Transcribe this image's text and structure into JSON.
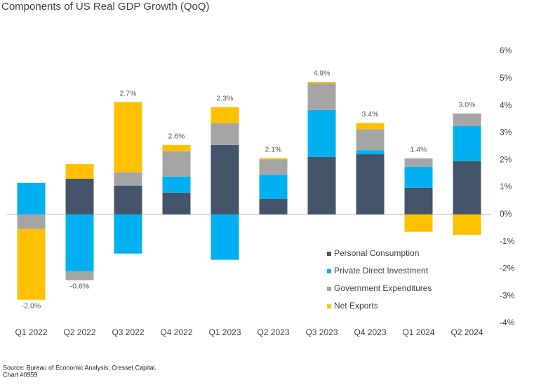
{
  "chart_data": {
    "type": "stacked_bar",
    "title": "Components of US Real GDP Growth (QoQ)",
    "categories": [
      "Q1 2022",
      "Q2 2022",
      "Q3 2022",
      "Q4 2022",
      "Q1 2023",
      "Q2 2023",
      "Q3 2023",
      "Q4 2023",
      "Q1 2024",
      "Q2 2024"
    ],
    "series": [
      {
        "name": "Personal Consumption",
        "color": "#44546a",
        "values": [
          0,
          1.31,
          1.06,
          0.8,
          2.55,
          0.57,
          2.11,
          2.21,
          0.98,
          1.96
        ]
      },
      {
        "name": "Private Direct Investment",
        "color": "#00b0f0",
        "values": [
          1.16,
          -2.09,
          -1.44,
          0.59,
          -1.67,
          0.88,
          1.73,
          0.15,
          0.77,
          1.29
        ]
      },
      {
        "name": "Government Expenditures",
        "color": "#a5a5a5",
        "values": [
          -0.54,
          -0.33,
          0.49,
          0.93,
          0.8,
          0.57,
          0.98,
          0.77,
          0.31,
          0.46
        ]
      },
      {
        "name": "Net Exports",
        "color": "#ffc000",
        "values": [
          -2.6,
          0.54,
          2.58,
          0.23,
          0.59,
          0.05,
          0.05,
          0.23,
          -0.64,
          -0.75
        ]
      }
    ],
    "totals": {
      "values": [
        -2.0,
        -0.6,
        2.7,
        2.6,
        2.3,
        2.1,
        4.9,
        3.4,
        1.4,
        3.0
      ],
      "value_labels": [
        "-2.0%",
        "-0.6%",
        "2.7%",
        "2.6%",
        "2.3%",
        "2.1%",
        "4.9%",
        "3.4%",
        "1.4%",
        "3.0%"
      ]
    },
    "ylim": [
      -4,
      6
    ],
    "yticks": [
      {
        "value": -4,
        "label": "-4%"
      },
      {
        "value": -3,
        "label": "-3%"
      },
      {
        "value": -2,
        "label": "-2%"
      },
      {
        "value": -1,
        "label": "-1%"
      },
      {
        "value": 0,
        "label": "0%"
      },
      {
        "value": 1,
        "label": "1%"
      },
      {
        "value": 2,
        "label": "2%"
      },
      {
        "value": 3,
        "label": "3%"
      },
      {
        "value": 4,
        "label": "4%"
      },
      {
        "value": 5,
        "label": "5%"
      },
      {
        "value": 6,
        "label": "6%"
      }
    ],
    "grid": false,
    "y_axis_side": "right",
    "notes": [
      "Source: Bureau of Economic Analysis; Cresset Capital.",
      "Chart #0959"
    ]
  }
}
